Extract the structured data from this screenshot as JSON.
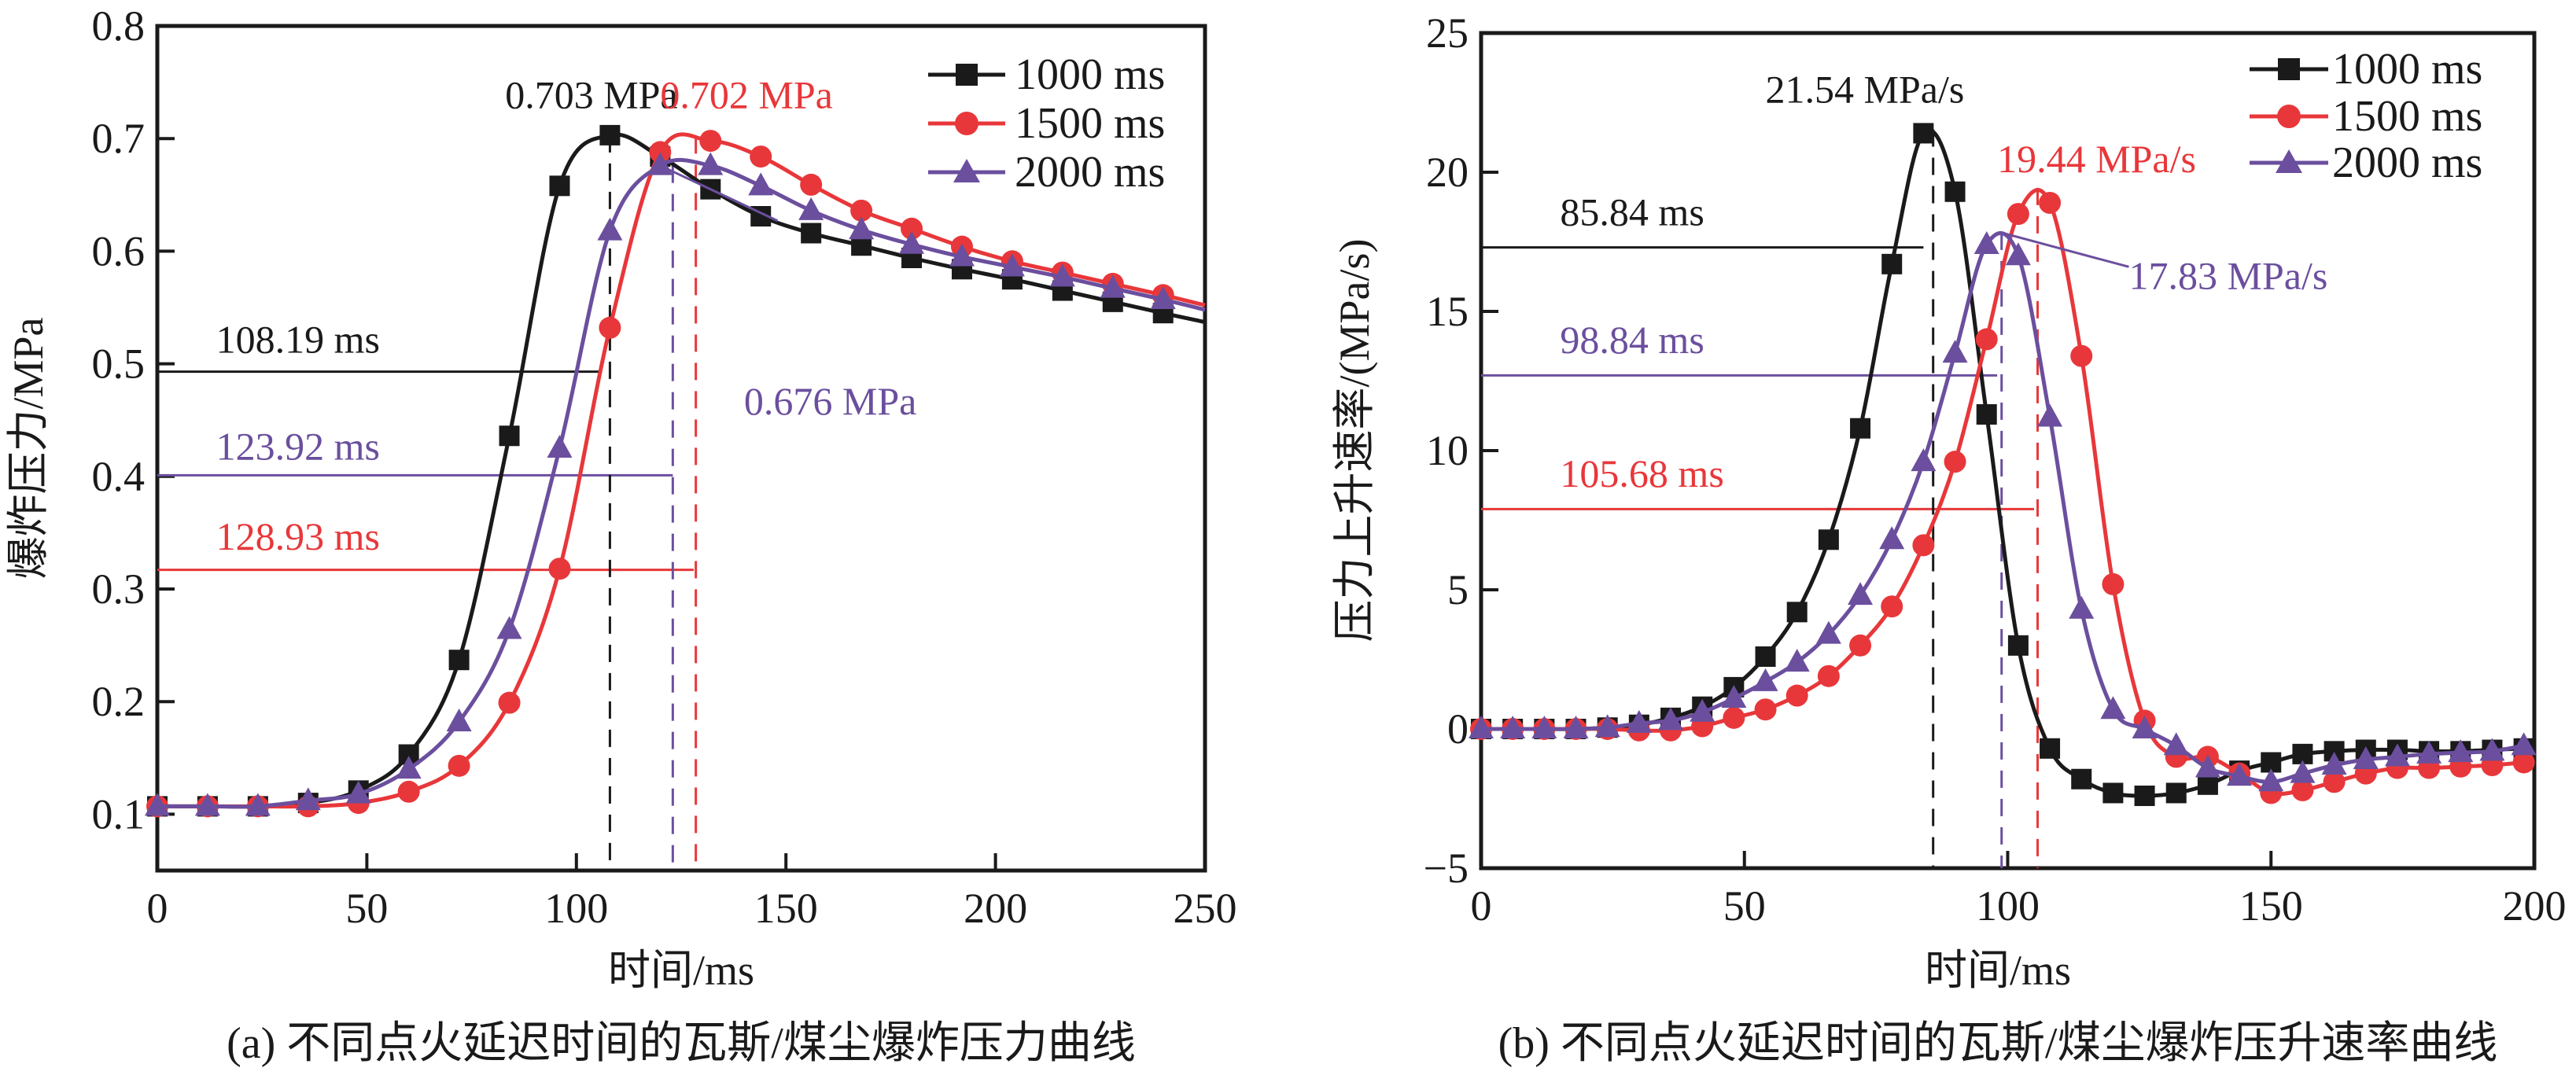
{
  "colors": {
    "s1000": "#1a1a1a",
    "s1500": "#e8373a",
    "s2000": "#6b4f9e",
    "axis": "#1a1a1a"
  },
  "chart_data": [
    {
      "id": "a",
      "type": "line",
      "caption": "(a) 不同点火延迟时间的瓦斯/煤尘爆炸压力曲线",
      "xlabel": "时间/ms",
      "ylabel": "爆炸压力/MPa",
      "xlim": [
        0,
        250
      ],
      "ylim": [
        0.05,
        0.8
      ],
      "xticks": [
        0,
        50,
        100,
        150,
        200,
        250
      ],
      "xtick_labels": [
        "0",
        "50",
        "100",
        "150",
        "200",
        "250"
      ],
      "yticks": [
        0.1,
        0.2,
        0.3,
        0.4,
        0.5,
        0.6,
        0.7,
        0.8
      ],
      "ytick_labels": [
        "0.1",
        "0.2",
        "0.3",
        "0.4",
        "0.5",
        "0.6",
        "0.7",
        "0.8"
      ],
      "grid": false,
      "legend_position": "top-right",
      "x": [
        0,
        12,
        24,
        36,
        48,
        60,
        72,
        84,
        96,
        108,
        120,
        132,
        144,
        156,
        168,
        180,
        192,
        204,
        216,
        228,
        240
      ],
      "series": [
        {
          "name": "1000 ms",
          "color_key": "s1000",
          "marker": "square",
          "values": [
            0.107,
            0.107,
            0.107,
            0.11,
            0.121,
            0.153,
            0.237,
            0.436,
            0.658,
            0.703,
            0.684,
            0.655,
            0.631,
            0.616,
            0.605,
            0.594,
            0.584,
            0.575,
            0.565,
            0.555,
            0.545
          ],
          "end_value": 0.537
        },
        {
          "name": "1500 ms",
          "color_key": "s1500",
          "marker": "circle",
          "values": [
            0.107,
            0.107,
            0.107,
            0.107,
            0.11,
            0.12,
            0.143,
            0.199,
            0.318,
            0.532,
            0.688,
            0.698,
            0.684,
            0.659,
            0.636,
            0.62,
            0.604,
            0.591,
            0.581,
            0.571,
            0.561
          ],
          "end_value": 0.552
        },
        {
          "name": "2000 ms",
          "color_key": "s2000",
          "marker": "triangle",
          "values": [
            0.107,
            0.107,
            0.107,
            0.112,
            0.118,
            0.14,
            0.182,
            0.264,
            0.425,
            0.618,
            0.676,
            0.676,
            0.658,
            0.636,
            0.619,
            0.606,
            0.595,
            0.586,
            0.577,
            0.567,
            0.557
          ],
          "end_value": 0.548
        }
      ],
      "annotations": [
        {
          "text": "0.703 MPa",
          "color_key": "s1000",
          "x": 83,
          "y": 0.727
        },
        {
          "text": "0.702 MPa",
          "color_key": "s1500",
          "x": 120,
          "y": 0.727
        },
        {
          "text": "0.676 MPa",
          "color_key": "s2000",
          "x": 140,
          "y": 0.455,
          "leader": [
            [
              120,
              0.676
            ],
            [
              148,
              0.627
            ]
          ]
        },
        {
          "text": "108.19 ms",
          "color_key": "s1000",
          "x": 14,
          "y": 0.51
        },
        {
          "text": "123.92 ms",
          "color_key": "s2000",
          "x": 14,
          "y": 0.415
        },
        {
          "text": "128.93 ms",
          "color_key": "s1500",
          "x": 14,
          "y": 0.335
        }
      ],
      "hlines": [
        {
          "color_key": "s1000",
          "y": 0.493,
          "x_end": 106
        },
        {
          "color_key": "s2000",
          "y": 0.401,
          "x_end": 123
        },
        {
          "color_key": "s1500",
          "y": 0.317,
          "x_end": 128
        }
      ],
      "vlines": [
        {
          "color_key": "s1000",
          "x": 108,
          "y_top": 0.703
        },
        {
          "color_key": "s2000",
          "x": 123,
          "y_top": 0.676
        },
        {
          "color_key": "s1500",
          "x": 128.5,
          "y_top": 0.702
        }
      ]
    },
    {
      "id": "b",
      "type": "line",
      "caption": "(b) 不同点火延迟时间的瓦斯/煤尘爆炸压升速率曲线",
      "xlabel": "时间/ms",
      "ylabel": "压力上升速率/(MPa/s)",
      "xlim": [
        0,
        200
      ],
      "ylim": [
        -5,
        25
      ],
      "xticks": [
        0,
        50,
        100,
        150,
        200
      ],
      "xtick_labels": [
        "0",
        "50",
        "100",
        "150",
        "200"
      ],
      "yticks": [
        -5,
        0,
        5,
        10,
        15,
        20,
        25
      ],
      "ytick_labels": [
        "−5",
        "0",
        "5",
        "10",
        "15",
        "20",
        "25"
      ],
      "grid": false,
      "legend_position": "top-right",
      "x": [
        0,
        6,
        12,
        18,
        24,
        30,
        36,
        42,
        48,
        54,
        60,
        66,
        72,
        78,
        84,
        90,
        96,
        102,
        108,
        114,
        120,
        126,
        132,
        138,
        144,
        150,
        156,
        162,
        168,
        174,
        180,
        186,
        192,
        198
      ],
      "series": [
        {
          "name": "1000 ms",
          "color_key": "s1000",
          "marker": "square",
          "values": [
            0,
            0,
            0,
            0,
            0.05,
            0.15,
            0.4,
            0.8,
            1.5,
            2.6,
            4.2,
            6.8,
            10.8,
            16.7,
            21.4,
            19.3,
            11.3,
            3.0,
            -0.7,
            -1.8,
            -2.3,
            -2.4,
            -2.3,
            -2.0,
            -1.5,
            -1.2,
            -0.9,
            -0.8,
            -0.75,
            -0.75,
            -0.8,
            -0.8,
            -0.75,
            -0.7
          ]
        },
        {
          "name": "1500 ms",
          "color_key": "s1500",
          "marker": "circle",
          "values": [
            0,
            0,
            0,
            0,
            0,
            -0.05,
            -0.05,
            0.1,
            0.4,
            0.7,
            1.2,
            1.9,
            3.0,
            4.4,
            6.6,
            9.6,
            14.0,
            18.5,
            18.9,
            13.4,
            5.2,
            0.3,
            -1.0,
            -1.0,
            -1.6,
            -2.3,
            -2.2,
            -1.9,
            -1.6,
            -1.4,
            -1.4,
            -1.35,
            -1.3,
            -1.2
          ]
        },
        {
          "name": "2000 ms",
          "color_key": "s2000",
          "marker": "triangle",
          "values": [
            0,
            0,
            0,
            0,
            0.05,
            0.2,
            0.3,
            0.6,
            1.1,
            1.7,
            2.4,
            3.4,
            4.8,
            6.8,
            9.6,
            13.5,
            17.4,
            17.0,
            11.2,
            4.3,
            0.7,
            0.0,
            -0.6,
            -1.4,
            -1.7,
            -1.9,
            -1.6,
            -1.3,
            -1.1,
            -1.0,
            -0.9,
            -0.85,
            -0.8,
            -0.6
          ]
        }
      ],
      "annotations": [
        {
          "text": "21.54 MPa/s",
          "color_key": "s1000",
          "x": 54,
          "y": 22.5
        },
        {
          "text": "19.44 MPa/s",
          "color_key": "s1500",
          "x": 98,
          "y": 20.0
        },
        {
          "text": "17.83 MPa/s",
          "color_key": "s2000",
          "x": 123,
          "y": 15.8,
          "leader": [
            [
              98.8,
              17.83
            ],
            [
              123,
              16.6
            ]
          ]
        },
        {
          "text": "85.84 ms",
          "color_key": "s1000",
          "x": 15,
          "y": 18.1
        },
        {
          "text": "98.84 ms",
          "color_key": "s2000",
          "x": 15,
          "y": 13.5
        },
        {
          "text": "105.68 ms",
          "color_key": "s1500",
          "x": 15,
          "y": 8.7
        }
      ],
      "hlines": [
        {
          "color_key": "s1000",
          "y": 17.3,
          "x_end": 84
        },
        {
          "color_key": "s2000",
          "y": 12.7,
          "x_end": 98
        },
        {
          "color_key": "s1500",
          "y": 7.9,
          "x_end": 105
        }
      ],
      "vlines": [
        {
          "color_key": "s1000",
          "x": 85.84,
          "y_top": 21.54
        },
        {
          "color_key": "s2000",
          "x": 98.84,
          "y_top": 17.83
        },
        {
          "color_key": "s1500",
          "x": 105.68,
          "y_top": 19.44
        }
      ]
    }
  ]
}
